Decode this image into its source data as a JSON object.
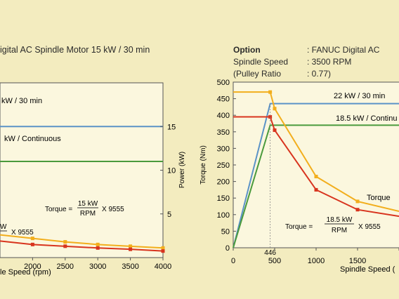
{
  "header": {
    "left_title": "igital AC Spindle Motor 15 kW / 30 min",
    "option_label": "Option",
    "option_value": ": FANUC Digital AC",
    "spindle_label": "Spindle Speed",
    "spindle_value": ": 3500 RPM",
    "pulley_label": "(Pulley Ratio",
    "pulley_value": ": 0.77)"
  },
  "colors": {
    "background": "#f3ecbf",
    "plot_bg": "#fbf7de",
    "blue": "#5b93c7",
    "green": "#4a9a3c",
    "orange": "#f2ae1c",
    "red": "#d8341e"
  },
  "chart_data": [
    {
      "type": "line",
      "title": "igital AC Spindle Motor 15 kW / 30 min",
      "xlabel": "le Speed (rpm)",
      "ylabel_right": "Power (kW)",
      "xlim": [
        1500,
        4000
      ],
      "ylim_right": [
        0,
        20
      ],
      "x_ticks": [
        "2000",
        "2500",
        "3000",
        "3500",
        "4000"
      ],
      "y_right_ticks": [
        "5",
        "10",
        "15"
      ],
      "grid": false,
      "series": [
        {
          "name": "kW / 30 min",
          "color": "blue",
          "x": [
            1500,
            4000
          ],
          "y": [
            15,
            15
          ]
        },
        {
          "name": "kW / Continuous",
          "color": "green",
          "x": [
            1500,
            4000
          ],
          "y": [
            11,
            11
          ]
        },
        {
          "color": "orange",
          "x": [
            1500,
            2000,
            2500,
            3000,
            3500,
            4000
          ],
          "y": [
            2.6,
            2.2,
            1.8,
            1.5,
            1.3,
            1.1
          ]
        },
        {
          "color": "red",
          "x": [
            1500,
            2000,
            2500,
            3000,
            3500,
            4000
          ],
          "y": [
            1.9,
            1.5,
            1.3,
            1.1,
            0.95,
            0.75
          ]
        }
      ],
      "annotations": {
        "formula_prefix": "Torque =",
        "formula_num": "15 kW",
        "formula_den": "RPM",
        "formula_suffix": "X 9555",
        "formula2_num": "W",
        "formula2_den": "",
        "formula2_suffix": "X 9555"
      }
    },
    {
      "type": "line",
      "xlabel": "Spindle Speed (",
      "ylabel": "Torque (Nm)",
      "xlim": [
        0,
        2000
      ],
      "ylim": [
        0,
        500
      ],
      "x_ticks": [
        "0",
        "500",
        "1000",
        "1500",
        "20"
      ],
      "x_marker_label": "446",
      "y_ticks": [
        "0",
        "50",
        "100",
        "150",
        "200",
        "250",
        "300",
        "350",
        "400",
        "450",
        "500"
      ],
      "grid": false,
      "series": [
        {
          "name": "22 kW / 30 min",
          "color": "blue",
          "x": [
            0,
            446,
            2000
          ],
          "y": [
            0,
            435,
            435
          ]
        },
        {
          "name": "18.5 kW / Continuous",
          "color": "green",
          "x": [
            0,
            446,
            2000
          ],
          "y": [
            0,
            370,
            370
          ]
        },
        {
          "color": "orange",
          "x": [
            0,
            446,
            500,
            1000,
            1500,
            2000
          ],
          "y": [
            470,
            470,
            420,
            215,
            140,
            110
          ]
        },
        {
          "color": "red",
          "x": [
            0,
            446,
            500,
            1000,
            1500,
            2000
          ],
          "y": [
            395,
            395,
            355,
            175,
            115,
            95
          ]
        }
      ],
      "annotations": {
        "label_30min": "22 kW / 30 min",
        "label_cont": "18.5 kW / Continu",
        "torque_label": "Torque",
        "formula_prefix": "Torque =",
        "formula_num": "18.5 kW",
        "formula_den": "RPM",
        "formula_suffix": "X 9555"
      }
    }
  ]
}
